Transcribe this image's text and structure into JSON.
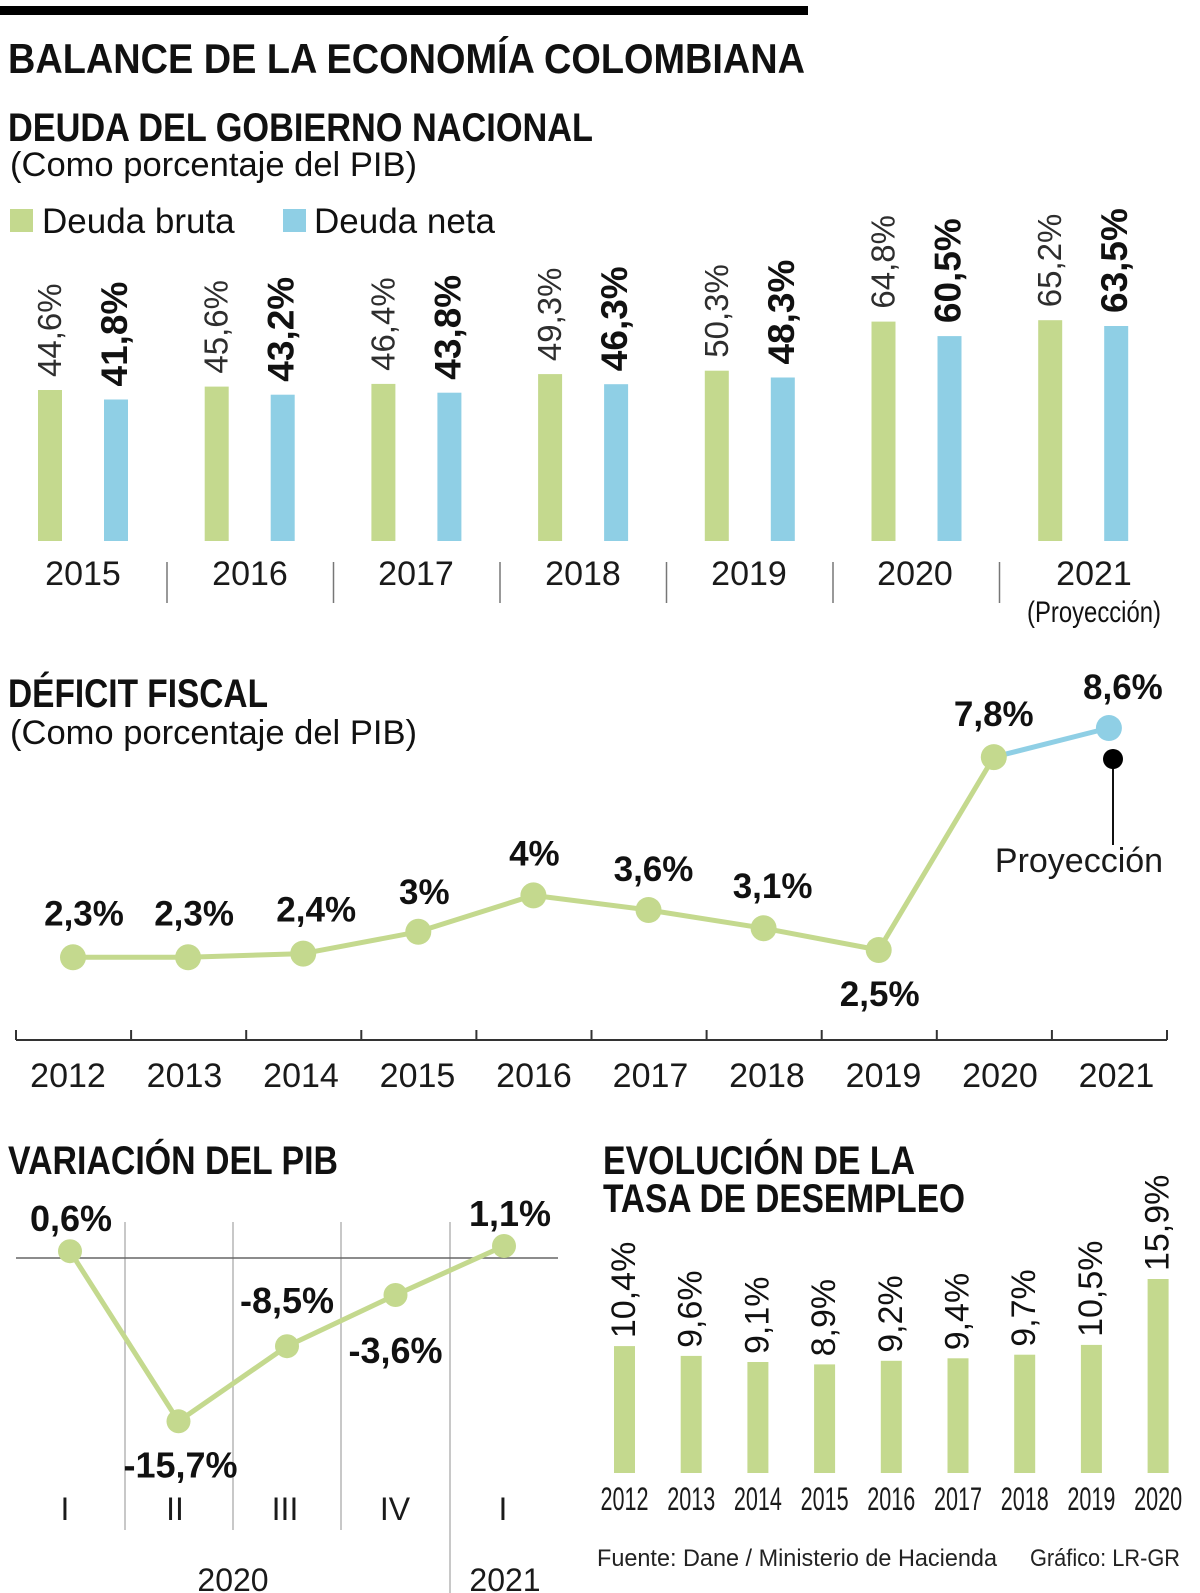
{
  "title": "BALANCE DE LA ECONOMÍA COLOMBIANA",
  "chart_data": [
    {
      "type": "bar",
      "title": "DEUDA DEL GOBIERNO NACIONAL",
      "subtitle": "(Como porcentaje del PIB)",
      "categories": [
        "2015",
        "2016",
        "2017",
        "2018",
        "2019",
        "2020",
        "2021"
      ],
      "projection_note": {
        "index": 6,
        "label": "(Proyección)"
      },
      "series": [
        {
          "name": "Deuda bruta",
          "color": "#c4d98e",
          "values": [
            44.6,
            45.6,
            46.4,
            49.3,
            50.3,
            64.8,
            65.2
          ],
          "labels": [
            "44,6%",
            "45,6%",
            "46,4%",
            "49,3%",
            "50,3%",
            "64,8%",
            "65,2%"
          ]
        },
        {
          "name": "Deuda neta",
          "color": "#8fcfe5",
          "values": [
            41.8,
            43.2,
            43.8,
            46.3,
            48.3,
            60.5,
            63.5
          ],
          "labels": [
            "41,8%",
            "43,2%",
            "43,8%",
            "46,3%",
            "48,3%",
            "60,5%",
            "63,5%"
          ]
        }
      ],
      "ylim": [
        0,
        70
      ]
    },
    {
      "type": "line",
      "title": "DÉFICIT FISCAL",
      "subtitle": "(Como porcentaje del PIB)",
      "x": [
        "2012",
        "2013",
        "2014",
        "2015",
        "2016",
        "2017",
        "2018",
        "2019",
        "2020",
        "2021"
      ],
      "values": [
        2.3,
        2.3,
        2.4,
        3,
        4,
        3.6,
        3.1,
        2.5,
        7.8,
        8.6
      ],
      "labels": [
        "2,3%",
        "2,3%",
        "2,4%",
        "3%",
        "4%",
        "3,6%",
        "3,1%",
        "2,5%",
        "7,8%",
        "8,6%"
      ],
      "color": "#c4d98e",
      "projection": {
        "from_index": 8,
        "label": "Proyección",
        "color": "#8fcfe5",
        "marker_color": "#000000"
      },
      "ylim": [
        0,
        9
      ]
    },
    {
      "type": "line",
      "title": "VARIACIÓN DEL PIB",
      "x": [
        "I",
        "II",
        "III",
        "IV",
        "I"
      ],
      "x_groups": [
        {
          "label": "2020",
          "count": 4
        },
        {
          "label": "2021",
          "count": 1
        }
      ],
      "values": [
        0.6,
        -15.7,
        -8.5,
        -3.6,
        1.1
      ],
      "labels": [
        "0,6%",
        "-15,7%",
        "-8,5%",
        "-3,6%",
        "1,1%"
      ],
      "color": "#c4d98e",
      "ylim": [
        -16,
        1.5
      ]
    },
    {
      "type": "bar",
      "title_lines": [
        "EVOLUCIÓN DE LA",
        "TASA DE DESEMPLEO"
      ],
      "categories": [
        "2012",
        "2013",
        "2014",
        "2015",
        "2016",
        "2017",
        "2018",
        "2019",
        "2020"
      ],
      "values": [
        10.4,
        9.6,
        9.1,
        8.9,
        9.2,
        9.4,
        9.7,
        10.5,
        15.9
      ],
      "labels": [
        "10,4%",
        "9,6%",
        "9,1%",
        "8,9%",
        "9,2%",
        "9,4%",
        "9,7%",
        "10,5%",
        "15,9%"
      ],
      "color": "#c4d98e",
      "ylim": [
        0,
        16
      ]
    }
  ],
  "footer": {
    "source": "Fuente: Dane / Ministerio de Hacienda",
    "credit": "Gráfico: LR-GR"
  }
}
